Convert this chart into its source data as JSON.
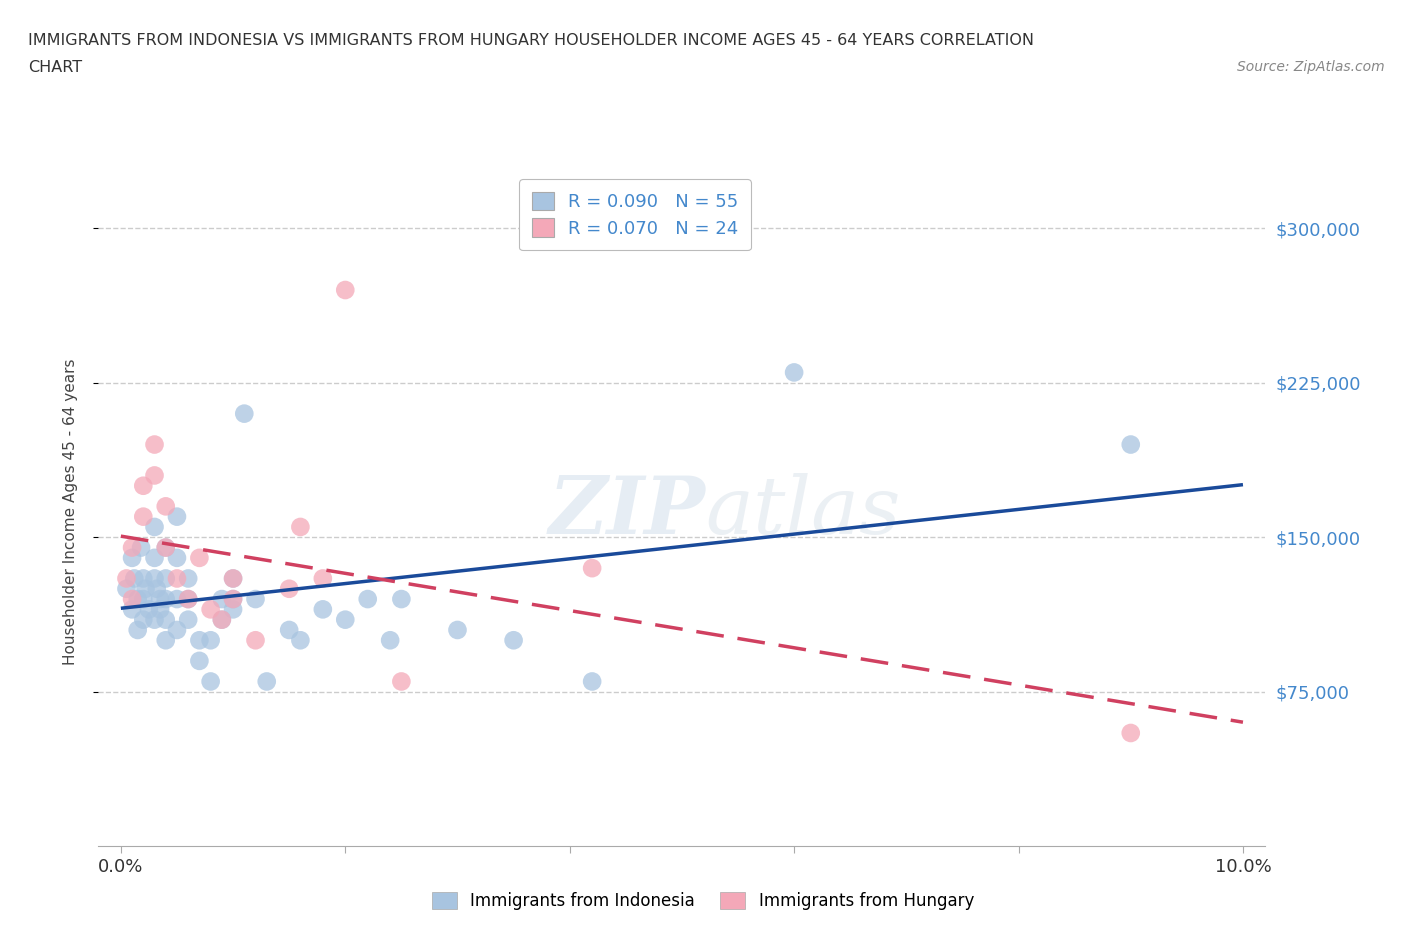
{
  "title_line1": "IMMIGRANTS FROM INDONESIA VS IMMIGRANTS FROM HUNGARY HOUSEHOLDER INCOME AGES 45 - 64 YEARS CORRELATION",
  "title_line2": "CHART",
  "source": "Source: ZipAtlas.com",
  "ylabel": "Householder Income Ages 45 - 64 years",
  "xlabel": "",
  "xlim": [
    -0.002,
    0.102
  ],
  "ylim": [
    0,
    325000
  ],
  "yticks": [
    75000,
    150000,
    225000,
    300000
  ],
  "ytick_labels": [
    "$75,000",
    "$150,000",
    "$225,000",
    "$300,000"
  ],
  "xticks": [
    0.0,
    0.02,
    0.04,
    0.06,
    0.08,
    0.1
  ],
  "xtick_labels": [
    "0.0%",
    "",
    "",
    "",
    "",
    "10.0%"
  ],
  "grid_color": "#cccccc",
  "watermark_zip": "ZIP",
  "watermark_atlas": "atlas",
  "indonesia_color": "#a8c4e0",
  "hungary_color": "#f4a8b8",
  "indonesia_line_color": "#1a4a9a",
  "hungary_line_color": "#d04060",
  "legend_r_indonesia": "R = 0.090",
  "legend_n_indonesia": "N = 55",
  "legend_r_hungary": "R = 0.070",
  "legend_n_hungary": "N = 24",
  "indonesia_x": [
    0.0005,
    0.001,
    0.001,
    0.0012,
    0.0015,
    0.0015,
    0.0018,
    0.002,
    0.002,
    0.002,
    0.0022,
    0.0025,
    0.003,
    0.003,
    0.003,
    0.003,
    0.0032,
    0.0035,
    0.0035,
    0.004,
    0.004,
    0.004,
    0.004,
    0.004,
    0.005,
    0.005,
    0.005,
    0.005,
    0.006,
    0.006,
    0.006,
    0.007,
    0.007,
    0.008,
    0.008,
    0.009,
    0.009,
    0.01,
    0.01,
    0.01,
    0.011,
    0.012,
    0.013,
    0.015,
    0.016,
    0.018,
    0.02,
    0.022,
    0.024,
    0.025,
    0.03,
    0.035,
    0.042,
    0.06,
    0.09
  ],
  "indonesia_y": [
    125000,
    140000,
    115000,
    130000,
    120000,
    105000,
    145000,
    130000,
    120000,
    110000,
    125000,
    115000,
    155000,
    140000,
    130000,
    110000,
    125000,
    120000,
    115000,
    145000,
    130000,
    120000,
    110000,
    100000,
    160000,
    140000,
    120000,
    105000,
    130000,
    120000,
    110000,
    100000,
    90000,
    80000,
    100000,
    110000,
    120000,
    115000,
    120000,
    130000,
    210000,
    120000,
    80000,
    105000,
    100000,
    115000,
    110000,
    120000,
    100000,
    120000,
    105000,
    100000,
    80000,
    230000,
    195000
  ],
  "hungary_x": [
    0.0005,
    0.001,
    0.001,
    0.002,
    0.002,
    0.003,
    0.003,
    0.004,
    0.004,
    0.005,
    0.006,
    0.007,
    0.008,
    0.009,
    0.01,
    0.01,
    0.012,
    0.015,
    0.016,
    0.018,
    0.02,
    0.025,
    0.042,
    0.09
  ],
  "hungary_y": [
    130000,
    145000,
    120000,
    175000,
    160000,
    195000,
    180000,
    165000,
    145000,
    130000,
    120000,
    140000,
    115000,
    110000,
    130000,
    120000,
    100000,
    125000,
    155000,
    130000,
    270000,
    80000,
    135000,
    55000
  ]
}
